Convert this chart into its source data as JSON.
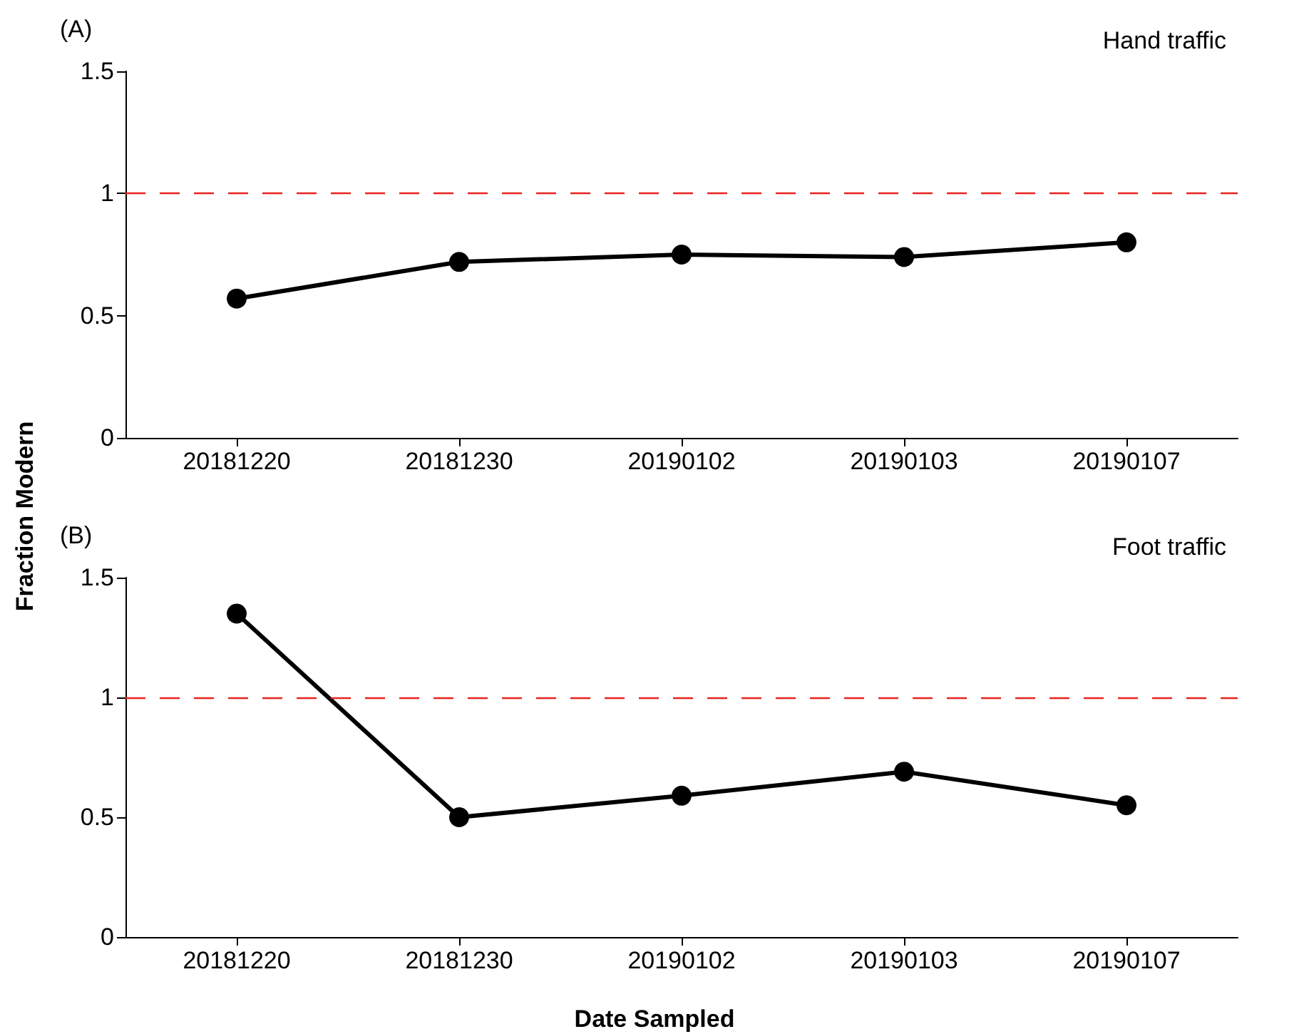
{
  "chart_data": [
    {
      "type": "line",
      "title": "(A)",
      "ylabel": "Fraction Modern",
      "annotations": [
        "Hand traffic"
      ],
      "categories": [
        "20181220",
        "20181230",
        "20190102",
        "20190103",
        "20190107"
      ],
      "series": [
        {
          "color": "#000000",
          "values": [
            0.57,
            0.72,
            0.75,
            0.74,
            0.8
          ]
        }
      ],
      "ylim": [
        0,
        1.5
      ],
      "yticks": [
        0,
        0.5,
        1,
        1.5
      ],
      "grid": false,
      "marker": "circle",
      "line_style": "solid",
      "ref_lines": [
        {
          "axis": "y",
          "value": 1,
          "color": "#e8231f",
          "line_style": "dashed"
        }
      ]
    },
    {
      "type": "line",
      "title": "(B)",
      "xlabel": "Date Sampled",
      "annotations": [
        "Foot traffic"
      ],
      "categories": [
        "20181220",
        "20181230",
        "20190102",
        "20190103",
        "20190107"
      ],
      "series": [
        {
          "color": "#000000",
          "values": [
            1.35,
            0.5,
            0.59,
            0.69,
            0.55
          ]
        }
      ],
      "ylim": [
        0,
        1.5
      ],
      "yticks": [
        0,
        0.5,
        1,
        1.5
      ],
      "grid": false,
      "marker": "circle",
      "line_style": "solid",
      "ref_lines": [
        {
          "axis": "y",
          "value": 1,
          "color": "#e8231f",
          "line_style": "dashed"
        }
      ]
    }
  ]
}
